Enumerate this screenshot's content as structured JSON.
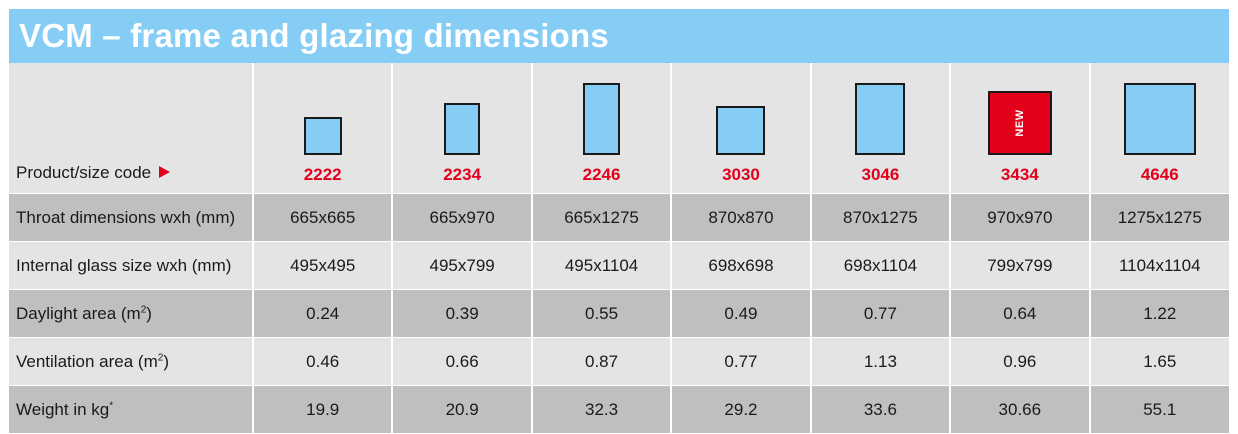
{
  "title": "VCM – frame and glazing dimensions",
  "header_label": "Product/size code",
  "products": [
    {
      "code": "2222",
      "new": false
    },
    {
      "code": "2234",
      "new": false
    },
    {
      "code": "2246",
      "new": false
    },
    {
      "code": "3030",
      "new": false
    },
    {
      "code": "3046",
      "new": false
    },
    {
      "code": "3434",
      "new": true
    },
    {
      "code": "4646",
      "new": false
    }
  ],
  "new_badge": "NEW",
  "rows": [
    {
      "label": "Throat dimensions wxh (mm)",
      "values": [
        "665x665",
        "665x970",
        "665x1275",
        "870x870",
        "870x1275",
        "970x970",
        "1275x1275"
      ]
    },
    {
      "label": "Internal glass size wxh (mm)",
      "values": [
        "495x495",
        "495x799",
        "495x1104",
        "698x698",
        "698x1104",
        "799x799",
        "1104x1104"
      ]
    },
    {
      "label_prefix": "Daylight area (m",
      "label_sup": "2",
      "label_suffix": ")",
      "values": [
        "0.24",
        "0.39",
        "0.55",
        "0.49",
        "0.77",
        "0.64",
        "1.22"
      ]
    },
    {
      "label_prefix": "Ventilation area (m",
      "label_sup": "2",
      "label_suffix": ")",
      "values": [
        "0.46",
        "0.66",
        "0.87",
        "0.77",
        "1.13",
        "0.96",
        "1.65"
      ]
    },
    {
      "label_prefix": "Weight in kg",
      "label_sup": "*",
      "label_suffix": "",
      "values": [
        "19.9",
        "20.9",
        "32.3",
        "29.2",
        "33.6",
        "30.66",
        "55.1"
      ]
    }
  ],
  "colors": {
    "accent": "#e3001b",
    "title_bg": "#85cdf4",
    "row_dark": "#bfbfbf",
    "row_light": "#e4e4e4"
  }
}
